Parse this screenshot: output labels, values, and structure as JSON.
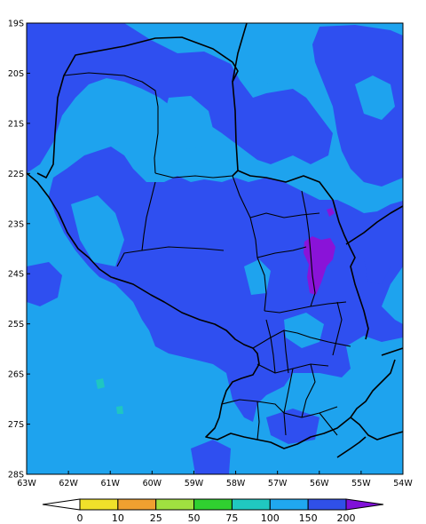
{
  "map": {
    "lat_labels": [
      "19S",
      "20S",
      "21S",
      "22S",
      "23S",
      "24S",
      "25S",
      "26S",
      "27S",
      "28S"
    ],
    "lon_labels": [
      "63W",
      "62W",
      "61W",
      "60W",
      "59W",
      "58W",
      "57W",
      "56W",
      "55W",
      "54W"
    ],
    "extent": {
      "lon_min": -63,
      "lon_max": -54,
      "lat_min": -28,
      "lat_max": -19
    }
  },
  "colorbar": {
    "labels": [
      "0",
      "10",
      "25",
      "50",
      "75",
      "100",
      "150",
      "200"
    ],
    "colors": [
      "#ffffff",
      "#f0e02a",
      "#f0a030",
      "#a0e040",
      "#30d030",
      "#20c8c0",
      "#20a8f0",
      "#3050e8",
      "#8010d8"
    ]
  },
  "colors": {
    "base_light_blue": "#1ea3ee",
    "blue": "#2f4ff0",
    "purple": "#8a13d8",
    "cyan": "#1fc6c1",
    "border": "#000000"
  }
}
